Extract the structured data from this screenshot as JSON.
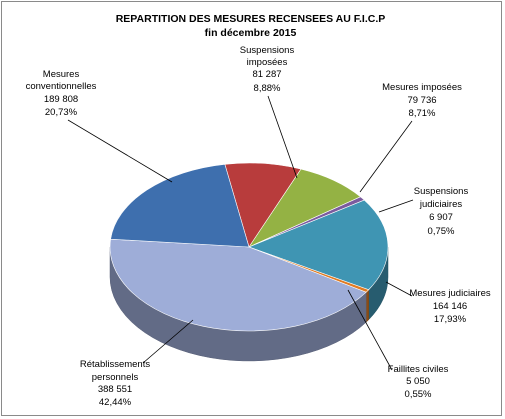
{
  "chart_data": {
    "type": "pie",
    "title": "REPARTITION DES MESURES RECENSEES AU F.I.C.P",
    "subtitle": "fin décembre 2015",
    "slices": [
      {
        "label": "Suspensions imposées",
        "value": 81287,
        "display": "81 287",
        "percent": "8,88%",
        "color": "#b83c3c"
      },
      {
        "label": "Mesures imposées",
        "value": 79736,
        "display": "79 736",
        "percent": "8,71%",
        "color": "#94b244"
      },
      {
        "label": "Suspensions judiciaires",
        "value": 6907,
        "display": "6 907",
        "percent": "0,75%",
        "color": "#7b5b9e"
      },
      {
        "label": "Mesures judiciaires",
        "value": 164146,
        "display": "164 146",
        "percent": "17,93%",
        "color": "#3f95b3"
      },
      {
        "label": "Faillites civiles",
        "value": 5050,
        "display": "5 050",
        "percent": "0,55%",
        "color": "#e07b22"
      },
      {
        "label": "Rétablissements personnels",
        "value": 388551,
        "display": "388 551",
        "percent": "42,44%",
        "color": "#9eadd8"
      },
      {
        "label": "Mesures conventionnelles",
        "value": 189808,
        "display": "189 808",
        "percent": "20,73%",
        "color": "#3e6fae"
      }
    ],
    "legend": "none"
  }
}
